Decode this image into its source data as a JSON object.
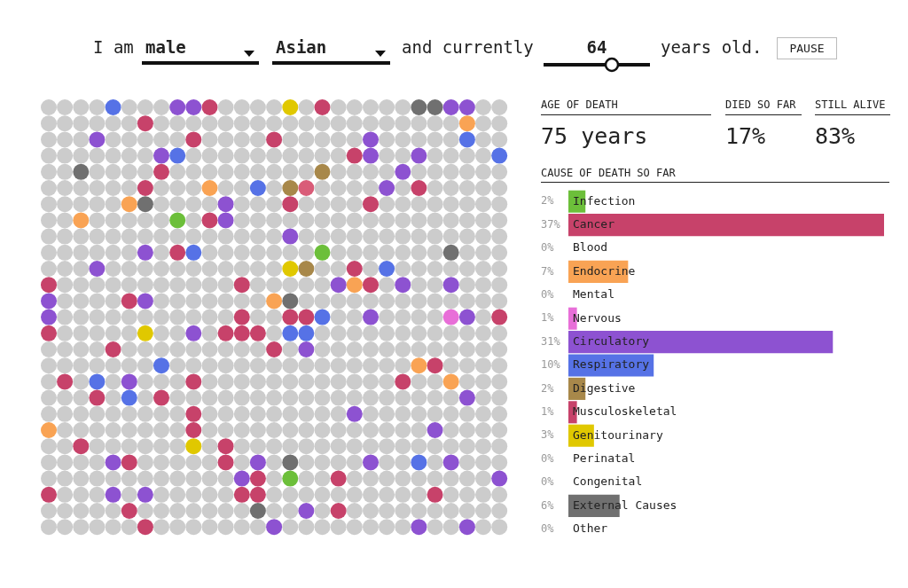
{
  "chart_data": [
    {
      "type": "other",
      "annotations": [
        "I am",
        "male",
        "Asian",
        "and currently",
        "64",
        "years old.",
        "PAUSE",
        "AGE OF DEATH",
        "75 years",
        "DIED SO FAR",
        "17%",
        "STILL ALIVE",
        "83%"
      ]
    },
    {
      "type": "bar",
      "orientation": "horizontal",
      "title": "CAUSE OF DEATH SO FAR",
      "categories": [
        "Infection",
        "Cancer",
        "Blood",
        "Endocrine",
        "Mental",
        "Nervous",
        "Circulatory",
        "Respiratory",
        "Digestive",
        "Musculoskeletal",
        "Genitourinary",
        "Perinatal",
        "Congenital",
        "External Causes",
        "Other"
      ],
      "values": [
        2,
        37,
        0,
        7,
        0,
        1,
        31,
        10,
        2,
        1,
        3,
        0,
        0,
        6,
        0
      ],
      "colors": [
        "#6cbf3a",
        "#c7426a",
        "#b03030",
        "#f9a354",
        "#40a0a0",
        "#e86fd8",
        "#8d52d1",
        "#5672e6",
        "#a8884a",
        "#c7426a",
        "#e0c800",
        "#90c0e0",
        "#c08040",
        "#707070",
        "#a0a0a0"
      ],
      "value_labels": [
        "2%",
        "37%",
        "0%",
        "7%",
        "0%",
        "1%",
        "31%",
        "10%",
        "2%",
        "1%",
        "3%",
        "0%",
        "0%",
        "6%",
        "0%"
      ]
    }
  ]
}
